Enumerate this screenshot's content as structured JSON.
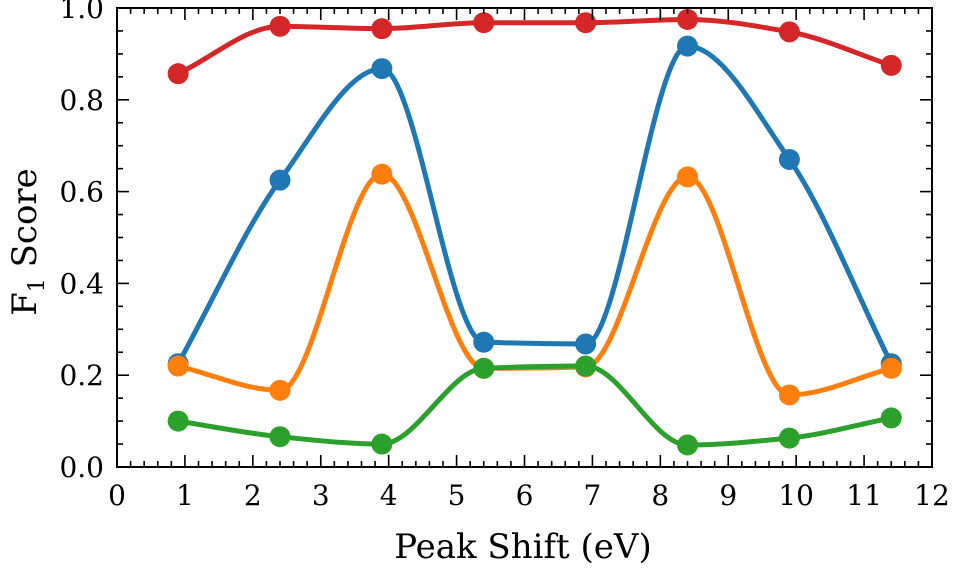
{
  "chart_data": {
    "type": "line",
    "xlabel": "Peak Shift (eV)",
    "ylabel": {
      "main": "F",
      "subscript": "1",
      "rest": " Score"
    },
    "xlim": [
      0,
      12
    ],
    "ylim": [
      0,
      1.0
    ],
    "xticks": [
      "0",
      "1",
      "2",
      "3",
      "4",
      "5",
      "6",
      "7",
      "8",
      "9",
      "10",
      "11",
      "12"
    ],
    "yticks": [
      "0.0",
      "0.2",
      "0.4",
      "0.6",
      "0.8",
      "1.0"
    ],
    "grid": false,
    "x": [
      0.9,
      2.4,
      3.9,
      5.4,
      6.9,
      8.4,
      9.9,
      11.4
    ],
    "series": [
      {
        "color": "#d62728",
        "values": [
          0.857,
          0.96,
          0.955,
          0.968,
          0.968,
          0.975,
          0.948,
          0.875
        ]
      },
      {
        "color": "#1f77b4",
        "values": [
          0.225,
          0.625,
          0.868,
          0.272,
          0.268,
          0.917,
          0.67,
          0.225
        ]
      },
      {
        "color": "#ff7f0e",
        "values": [
          0.22,
          0.167,
          0.638,
          0.215,
          0.218,
          0.632,
          0.157,
          0.215
        ]
      },
      {
        "color": "#2ca02c",
        "values": [
          0.1,
          0.066,
          0.05,
          0.215,
          0.22,
          0.048,
          0.063,
          0.107
        ]
      }
    ]
  }
}
